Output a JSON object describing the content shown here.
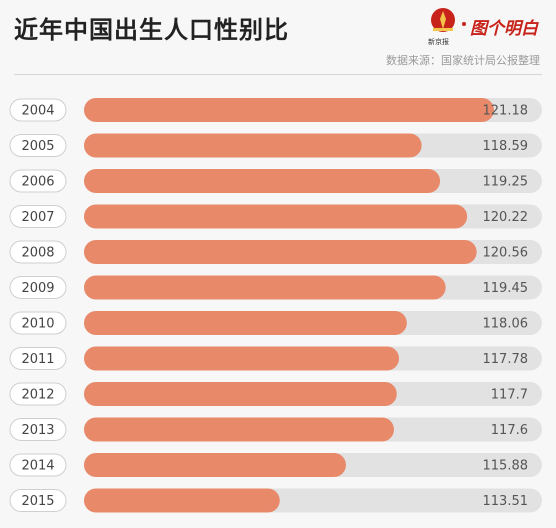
{
  "header": {
    "title": "近年中国出生人口性别比",
    "source": "数据来源：国家统计局公报整理"
  },
  "logo": {
    "seal_caption": "新京报",
    "brand_text": "图个明白"
  },
  "colors": {
    "bar_fill": "#e8896a",
    "bar_track": "#e2e2e2",
    "pill_border": "#cfcfcf",
    "title_text": "#222222",
    "value_text": "#555555",
    "brand_red": "#c8231a"
  },
  "chart_data": {
    "type": "bar",
    "orientation": "horizontal",
    "title": "近年中国出生人口性别比",
    "categories": [
      "2004",
      "2005",
      "2006",
      "2007",
      "2008",
      "2009",
      "2010",
      "2011",
      "2012",
      "2013",
      "2014",
      "2015"
    ],
    "values": [
      121.18,
      118.59,
      119.25,
      120.22,
      120.56,
      119.45,
      118.06,
      117.78,
      117.7,
      117.6,
      115.88,
      113.51
    ],
    "value_labels": [
      "121.18",
      "118.59",
      "119.25",
      "120.22",
      "120.56",
      "119.45",
      "118.06",
      "117.78",
      "117.7",
      "117.6",
      "115.88",
      "113.51"
    ],
    "xlim": [
      106.5,
      122.9
    ],
    "xlabel": "",
    "ylabel": "",
    "grid": false,
    "legend": "none"
  }
}
